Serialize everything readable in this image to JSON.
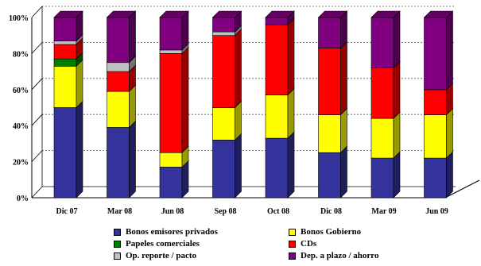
{
  "chart_data": {
    "type": "bar",
    "stacked": true,
    "percent_stacked": true,
    "categories": [
      "Dic 07",
      "Mar 08",
      "Jun 08",
      "Sep 08",
      "Oct 08",
      "Dic 08",
      "Mar 09",
      "Jun 09"
    ],
    "series": [
      {
        "name": "Bonos emisores privados",
        "color": "#33339b",
        "values": [
          50,
          39,
          17,
          32,
          33,
          25,
          22,
          22
        ]
      },
      {
        "name": "Bonos Gobierno",
        "color": "#ffff00",
        "values": [
          23,
          20,
          8,
          18,
          24,
          21,
          22,
          24
        ]
      },
      {
        "name": "Papeles comerciales",
        "color": "#008000",
        "values": [
          4,
          0,
          0,
          0,
          0,
          0,
          0,
          0
        ]
      },
      {
        "name": "CDs",
        "color": "#ff0000",
        "values": [
          8,
          11,
          55,
          40,
          39,
          37,
          28,
          14
        ]
      },
      {
        "name": "Op. reporte / pacto",
        "color": "#c0c0c0",
        "values": [
          2,
          5,
          2,
          2,
          0,
          0,
          0,
          0
        ]
      },
      {
        "name": "Dep. a plazo / ahorro",
        "color": "#800080",
        "values": [
          13,
          25,
          18,
          8,
          4,
          17,
          28,
          40
        ]
      }
    ],
    "ylim": [
      0,
      100
    ],
    "yticks": [
      "0%",
      "20%",
      "40%",
      "60%",
      "80%",
      "100%"
    ],
    "grid": true,
    "legend_position": "bottom"
  }
}
